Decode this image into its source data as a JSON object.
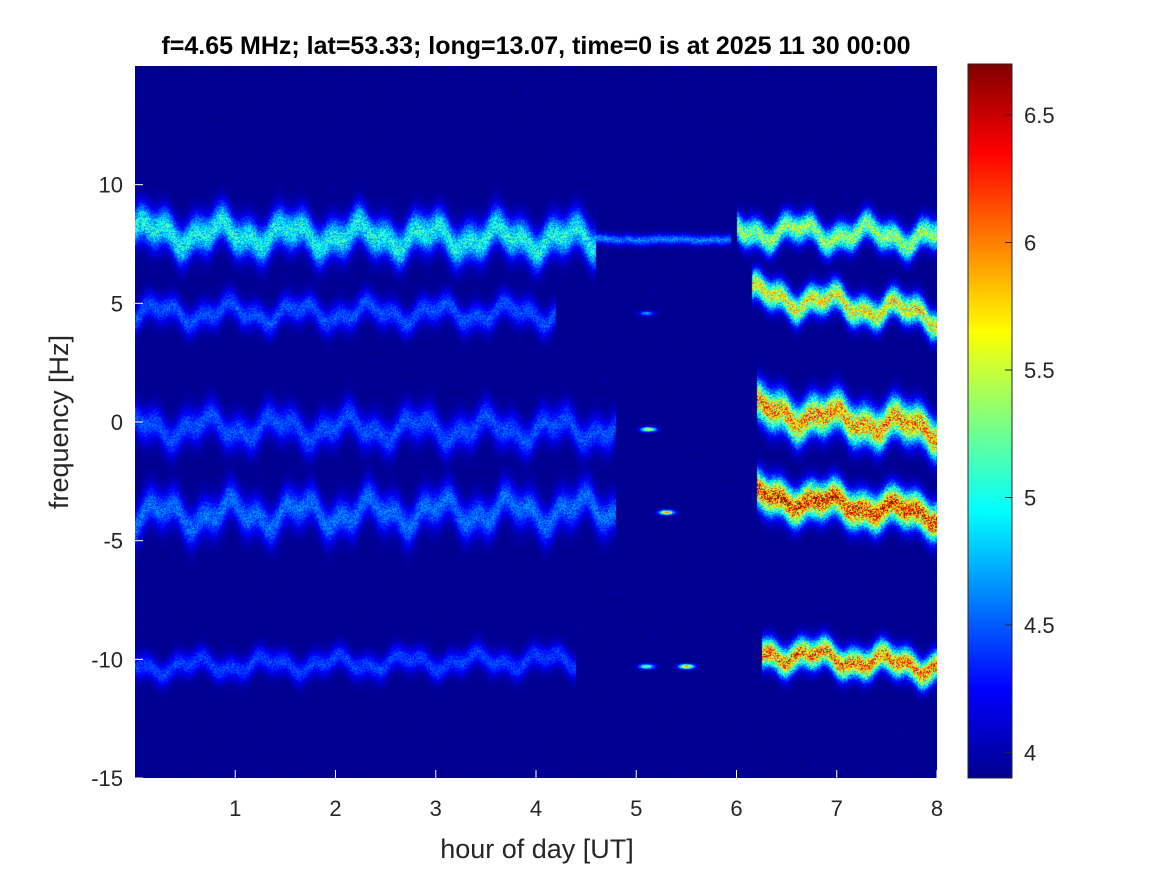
{
  "chart_data": {
    "type": "heatmap",
    "title": "f=4.65 MHz;  lat=53.33; long=13.07, time=0 is at 2025 11 30 00:00",
    "xlabel": "hour of day [UT]",
    "ylabel": "frequency [Hz]",
    "xlim": [
      0,
      8
    ],
    "ylim": [
      -15,
      15
    ],
    "xticks": [
      1,
      2,
      3,
      4,
      5,
      6,
      7,
      8
    ],
    "yticks": [
      -15,
      -10,
      -5,
      0,
      5,
      10
    ],
    "colorbar": {
      "colormap": "jet",
      "range": [
        3.9,
        6.7
      ],
      "ticks": [
        4,
        4.5,
        5,
        5.5,
        6,
        6.5
      ]
    },
    "background_value": 3.95,
    "traces": [
      {
        "x_start": 0.0,
        "x_end": 4.6,
        "freq_start": 8.0,
        "freq_end": 7.7,
        "peak": 5.15,
        "width": 0.55,
        "wiggle": 0.6
      },
      {
        "x_start": 4.6,
        "x_end": 5.95,
        "freq_start": 7.7,
        "freq_end": 7.7,
        "peak": 4.7,
        "width": 0.15,
        "wiggle": 0.05
      },
      {
        "x_start": 6.0,
        "x_end": 8.0,
        "freq_start": 8.1,
        "freq_end": 7.8,
        "peak": 5.6,
        "width": 0.4,
        "wiggle": 0.5
      },
      {
        "x_start": 0.0,
        "x_end": 4.2,
        "freq_start": 4.6,
        "freq_end": 4.6,
        "peak": 4.55,
        "width": 0.4,
        "wiggle": 0.5
      },
      {
        "x_start": 6.15,
        "x_end": 8.0,
        "freq_start": 5.4,
        "freq_end": 4.5,
        "peak": 5.9,
        "width": 0.4,
        "wiggle": 0.5
      },
      {
        "x_start": 0.0,
        "x_end": 4.8,
        "freq_start": -0.2,
        "freq_end": -0.3,
        "peak": 4.55,
        "width": 0.5,
        "wiggle": 0.6
      },
      {
        "x_start": 6.2,
        "x_end": 8.0,
        "freq_start": 0.5,
        "freq_end": -0.3,
        "peak": 6.2,
        "width": 0.55,
        "wiggle": 0.5
      },
      {
        "x_start": 0.0,
        "x_end": 4.8,
        "freq_start": -3.9,
        "freq_end": -3.7,
        "peak": 4.65,
        "width": 0.55,
        "wiggle": 0.7
      },
      {
        "x_start": 6.2,
        "x_end": 8.0,
        "freq_start": -3.1,
        "freq_end": -3.9,
        "peak": 6.55,
        "width": 0.5,
        "wiggle": 0.4
      },
      {
        "x_start": 0.0,
        "x_end": 4.4,
        "freq_start": -10.3,
        "freq_end": -10.0,
        "peak": 4.5,
        "width": 0.35,
        "wiggle": 0.4
      },
      {
        "x_start": 6.25,
        "x_end": 8.0,
        "freq_start": -9.7,
        "freq_end": -10.3,
        "peak": 6.3,
        "width": 0.4,
        "wiggle": 0.4
      }
    ],
    "spots": [
      {
        "x": 5.1,
        "freq": 4.6,
        "peak": 4.8
      },
      {
        "x": 5.12,
        "freq": -0.3,
        "peak": 5.9
      },
      {
        "x": 5.3,
        "freq": -3.8,
        "peak": 6.1
      },
      {
        "x": 5.5,
        "freq": -10.3,
        "peak": 6.2
      },
      {
        "x": 5.1,
        "freq": -10.3,
        "peak": 5.6
      }
    ]
  }
}
